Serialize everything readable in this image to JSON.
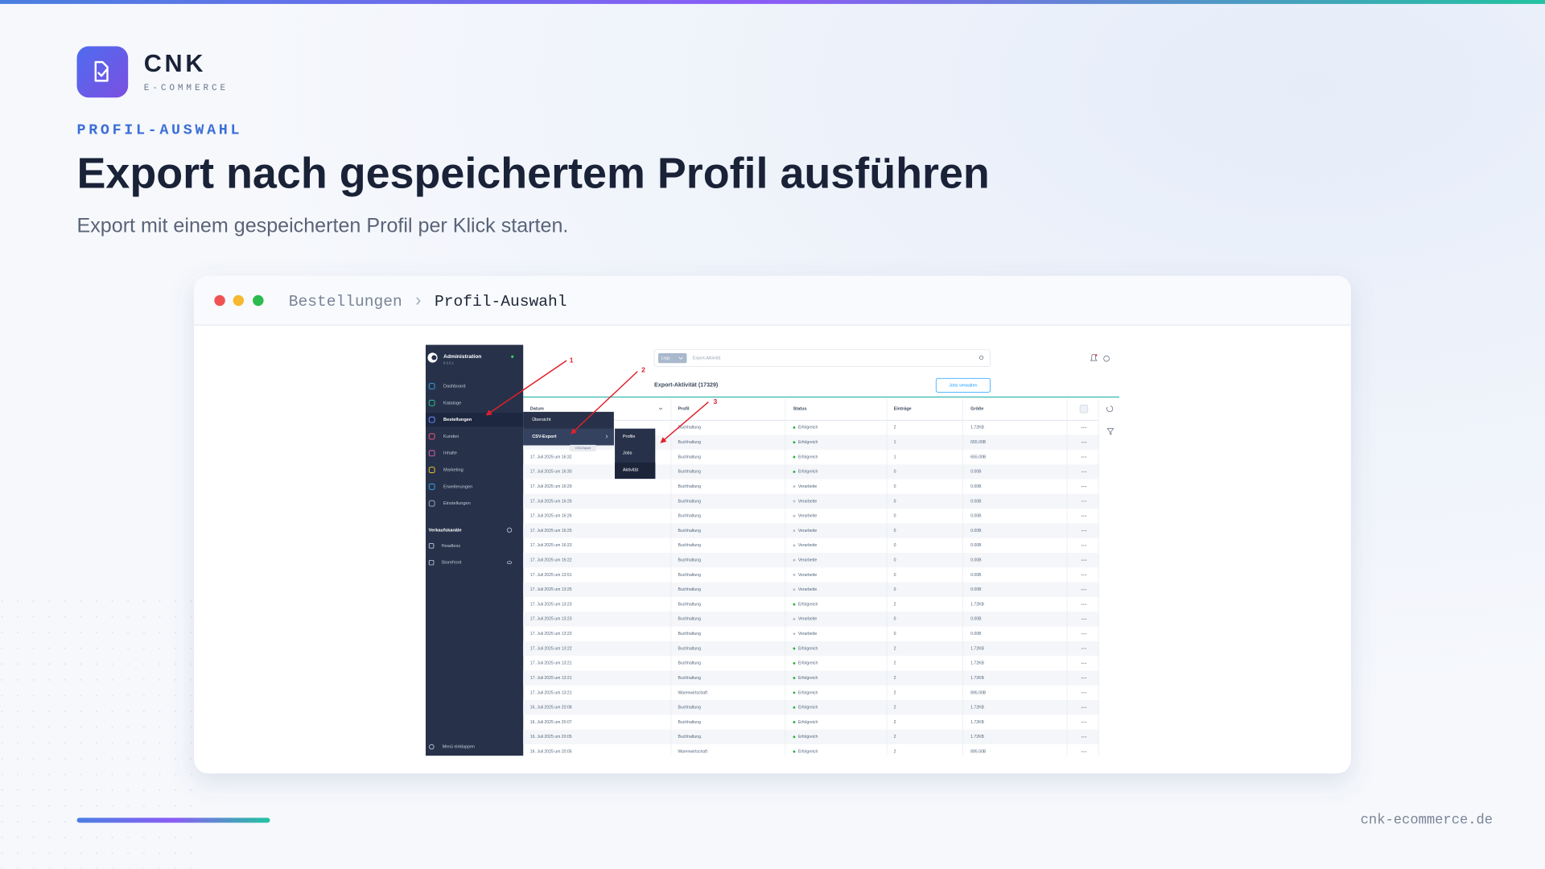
{
  "brand": {
    "name": "CNK",
    "tagline": "E-COMMERCE"
  },
  "eyebrow": "PROFIL-AUSWAHL",
  "title": "Export nach gespeichertem Profil ausführen",
  "subtitle": "Export mit einem gespeicherten Profil per Klick starten.",
  "window": {
    "breadcrumb": [
      "Bestellungen",
      "Profil-Auswahl"
    ],
    "screenshot": {
      "sidebar": {
        "title": "Administration",
        "version": "6.6.8.1",
        "items": [
          "Dashboard",
          "Kataloge",
          "Bestellungen",
          "Kunden",
          "Inhalte",
          "Marketing",
          "Erweiterungen",
          "Einstellungen"
        ],
        "section": "Verkaufskanäle",
        "channels": [
          "Headless",
          "Storefront"
        ],
        "collapse": "Menü einklappen"
      },
      "search": {
        "scope": "Logs",
        "placeholder": "Export-Aktivität"
      },
      "heading": "Export-Aktivität (17329)",
      "button": "Jobs verwalten",
      "table": {
        "columns": [
          "Datum",
          "Profil",
          "Status",
          "Einträge",
          "Größe"
        ],
        "status_colors": {
          "Erfolgreich": "#2fb344",
          "Verarbeite": "#b9c1cc"
        },
        "rows": [
          [
            null,
            "Buchhaltung",
            "Erfolgreich",
            2,
            "1.72KB"
          ],
          [
            null,
            "Buchhaltung",
            "Erfolgreich",
            1,
            "655.00B"
          ],
          [
            "17. Juli 2025 um 16:32",
            "Buchhaltung",
            "Erfolgreich",
            1,
            "655.00B"
          ],
          [
            "17. Juli 2025 um 16:30",
            "Buchhaltung",
            "Erfolgreich",
            0,
            "0.00B"
          ],
          [
            "17. Juli 2025 um 16:29",
            "Buchhaltung",
            "Verarbeite",
            0,
            "0.00B"
          ],
          [
            "17. Juli 2025 um 16:26",
            "Buchhaltung",
            "Verarbeite",
            0,
            "0.00B"
          ],
          [
            "17. Juli 2025 um 16:26",
            "Buchhaltung",
            "Verarbeite",
            0,
            "0.00B"
          ],
          [
            "17. Juli 2025 um 16:25",
            "Buchhaltung",
            "Verarbeite",
            0,
            "0.00B"
          ],
          [
            "17. Juli 2025 um 16:23",
            "Buchhaltung",
            "Verarbeite",
            0,
            "0.00B"
          ],
          [
            "17. Juli 2025 um 16:22",
            "Buchhaltung",
            "Verarbeite",
            0,
            "0.00B"
          ],
          [
            "17. Juli 2025 um 13:51",
            "Buchhaltung",
            "Verarbeite",
            0,
            "0.00B"
          ],
          [
            "17. Juli 2025 um 13:25",
            "Buchhaltung",
            "Verarbeite",
            0,
            "0.00B"
          ],
          [
            "17. Juli 2025 um 13:23",
            "Buchhaltung",
            "Erfolgreich",
            2,
            "1.72KB"
          ],
          [
            "17. Juli 2025 um 13:23",
            "Buchhaltung",
            "Verarbeite",
            0,
            "0.00B"
          ],
          [
            "17. Juli 2025 um 13:23",
            "Buchhaltung",
            "Verarbeite",
            0,
            "0.00B"
          ],
          [
            "17. Juli 2025 um 13:22",
            "Buchhaltung",
            "Erfolgreich",
            2,
            "1.72KB"
          ],
          [
            "17. Juli 2025 um 13:21",
            "Buchhaltung",
            "Erfolgreich",
            2,
            "1.72KB"
          ],
          [
            "17. Juli 2025 um 13:21",
            "Buchhaltung",
            "Erfolgreich",
            2,
            "1.72KB"
          ],
          [
            "17. Juli 2025 um 13:21",
            "Warenwirtschaft",
            "Erfolgreich",
            2,
            "895.00B"
          ],
          [
            "16. Juli 2025 um 20:08",
            "Buchhaltung",
            "Erfolgreich",
            2,
            "1.72KB"
          ],
          [
            "16. Juli 2025 um 20:07",
            "Buchhaltung",
            "Erfolgreich",
            2,
            "1.72KB"
          ],
          [
            "16. Juli 2025 um 20:05",
            "Buchhaltung",
            "Erfolgreich",
            2,
            "1.72KB"
          ],
          [
            "16. Juli 2025 um 20:05",
            "Warenwirtschaft",
            "Erfolgreich",
            2,
            "895.00B"
          ]
        ]
      },
      "menu": {
        "level1": [
          "Übersicht",
          "CSV-Export"
        ],
        "tooltip": "CSV-Export",
        "level2": [
          "Profile",
          "Jobs",
          "Aktivität"
        ]
      },
      "annotations": [
        "1",
        "2",
        "3"
      ]
    }
  },
  "footer": {
    "url": "cnk-ecommerce.de"
  }
}
